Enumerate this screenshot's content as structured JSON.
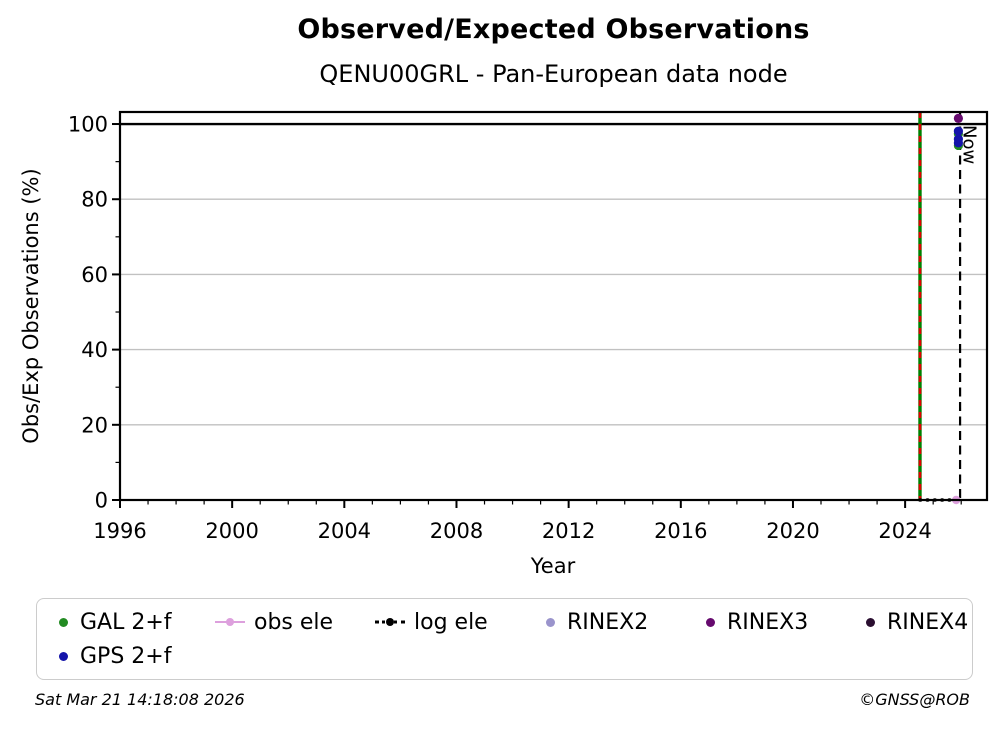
{
  "chart_data": {
    "type": "scatter",
    "title": "Observed/Expected Observations",
    "subtitle": "QENU00GRL - Pan-European data node",
    "xlabel": "Year",
    "ylabel": "Obs/Exp Observations (%)",
    "xlim": [
      1996,
      2026.92
    ],
    "ylim": [
      0,
      103.2
    ],
    "x_major_ticks": [
      1996,
      2000,
      2004,
      2008,
      2012,
      2016,
      2020,
      2024
    ],
    "x_minor_step": 1,
    "y_major_ticks": [
      0,
      20,
      40,
      60,
      80,
      100
    ],
    "y_minor_ticks": [
      10,
      30,
      50,
      70,
      90
    ],
    "y_gridlines": [
      0,
      20,
      40,
      60,
      80
    ],
    "grid_color": "#c1c1c1",
    "reference_line_y": 100,
    "reference_line_color": "#000000",
    "event_line": {
      "x": 2024.53,
      "solid_color": "#008000",
      "dash_color": "#e00000"
    },
    "now_line": {
      "x": 2025.96,
      "label": "Now",
      "color": "#000000"
    },
    "log_ele_segment": {
      "y": 0,
      "x_start": 2024.53,
      "x_end": 2026.0,
      "color": "#000000",
      "style": "dotted"
    },
    "obs_ele_point": {
      "x": 2025.82,
      "y": 0,
      "color": "#dda0dd"
    },
    "series": [
      {
        "name": "GAL 2+f",
        "color": "#228b22",
        "points": [
          {
            "x": 2025.9,
            "y": 97.4
          },
          {
            "x": 2025.9,
            "y": 94.3
          }
        ]
      },
      {
        "name": "GPS 2+f",
        "color": "#1414aa",
        "points": [
          {
            "x": 2025.9,
            "y": 98.1
          },
          {
            "x": 2025.9,
            "y": 96.0
          },
          {
            "x": 2025.9,
            "y": 95.0
          }
        ]
      },
      {
        "name": "RINEX3",
        "color": "#660a6e",
        "points": [
          {
            "x": 2025.9,
            "y": 101.5
          }
        ]
      }
    ]
  },
  "legend": {
    "items": [
      {
        "label": "GAL 2+f",
        "marker": "dot",
        "color": "#228b22"
      },
      {
        "label": "obs ele",
        "marker": "line-dot",
        "color": "#dda0dd"
      },
      {
        "label": "log ele",
        "marker": "dotted-line-dot",
        "color": "#000000"
      },
      {
        "label": "RINEX2",
        "marker": "dot",
        "color": "#9a94cc"
      },
      {
        "label": "RINEX3",
        "marker": "dot",
        "color": "#660a6e"
      },
      {
        "label": "RINEX4",
        "marker": "dot",
        "color": "#2a0e30"
      },
      {
        "label": "GPS 2+f",
        "marker": "dot",
        "color": "#1414aa"
      }
    ]
  },
  "footer": {
    "timestamp": "Sat Mar 21 14:18:08 2026",
    "credit": "©GNSS@ROB"
  }
}
